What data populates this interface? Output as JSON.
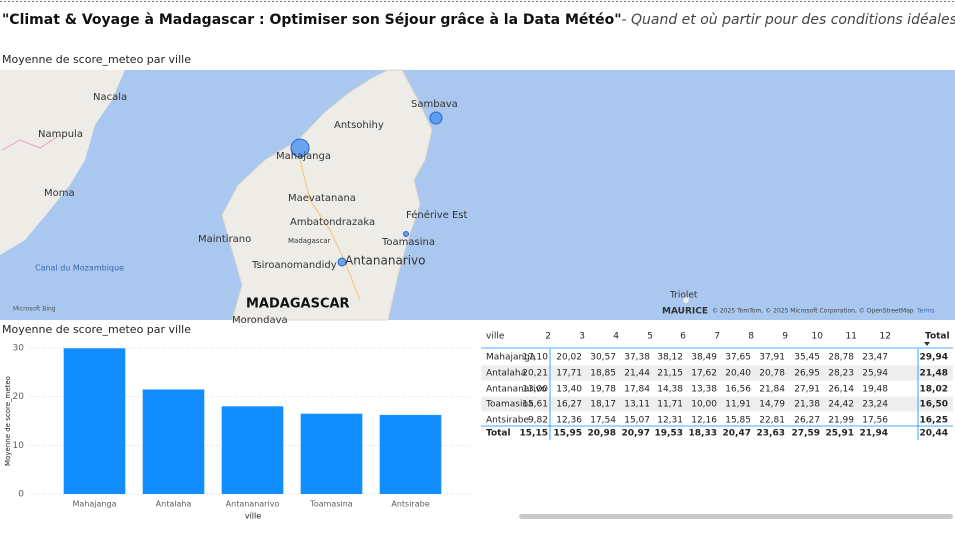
{
  "header": {
    "title": "\"Climat & Voyage à Madagascar : Optimiser son Séjour grâce à la Data Météo\"",
    "subtitle": "- Quand et où partir pour des conditions idéales ?"
  },
  "map": {
    "title": "Moyenne de score_meteo par ville",
    "labels": [
      "Nacala",
      "Nampula",
      "Moma",
      "Antsohihy",
      "Sambava",
      "Mahajanga",
      "Maevatanana",
      "Ambatondrazaka",
      "Fénérive Est",
      "Maintirano",
      "Madagascar",
      "Toamasina",
      "Antananarivo",
      "Tsiroanomandidy",
      "Canal du Mozambique",
      "MADAGASCAR",
      "Morondava",
      "Triolet",
      "MAURICE"
    ],
    "logo": "Microsoft Bing",
    "attribution": "© 2025 TomTom, © 2025 Microsoft Corporation, © OpenStreetMap",
    "terms": "Terms"
  },
  "chart_data": {
    "type": "bar",
    "title": "Moyenne de score_meteo par ville",
    "x_label": "ville",
    "y_label": "Moyenne de score_meteo",
    "categories": [
      "Mahajanga",
      "Antalaha",
      "Antananarivo",
      "Toamasina",
      "Antsirabe"
    ],
    "values": [
      29.94,
      21.48,
      18.02,
      16.5,
      16.25
    ],
    "color": "#118dff",
    "ylim": [
      0,
      30
    ],
    "yticks": [
      0,
      10,
      20,
      30
    ],
    "grid": true
  },
  "table": {
    "header": [
      "ville",
      "2",
      "3",
      "4",
      "5",
      "6",
      "7",
      "8",
      "9",
      "10",
      "11",
      "12",
      "Total"
    ],
    "rows": [
      [
        "Mahajanga",
        "17,10",
        "20,02",
        "30,57",
        "37,38",
        "38,12",
        "38,49",
        "37,65",
        "37,91",
        "35,45",
        "28,78",
        "23,47",
        "29,94"
      ],
      [
        "Antalaha",
        "20,21",
        "17,71",
        "18,85",
        "21,44",
        "21,15",
        "17,62",
        "20,40",
        "20,78",
        "26,95",
        "28,23",
        "25,94",
        "21,48"
      ],
      [
        "Antananarivo",
        "13,00",
        "13,40",
        "19,78",
        "17,84",
        "14,38",
        "13,38",
        "16,56",
        "21,84",
        "27,91",
        "26,14",
        "19,48",
        "18,02"
      ],
      [
        "Toamasina",
        "15,61",
        "16,27",
        "18,17",
        "13,11",
        "11,71",
        "10,00",
        "11,91",
        "14,79",
        "21,38",
        "24,42",
        "23,24",
        "16,50"
      ],
      [
        "Antsirabe",
        "9,82",
        "12,36",
        "17,54",
        "15,07",
        "12,31",
        "12,16",
        "15,85",
        "22,81",
        "26,27",
        "21,99",
        "17,56",
        "16,25"
      ]
    ],
    "total": [
      "Total",
      "15,15",
      "15,95",
      "20,98",
      "20,97",
      "19,53",
      "18,33",
      "20,47",
      "23,63",
      "27,59",
      "25,91",
      "21,94",
      "20,44"
    ]
  }
}
